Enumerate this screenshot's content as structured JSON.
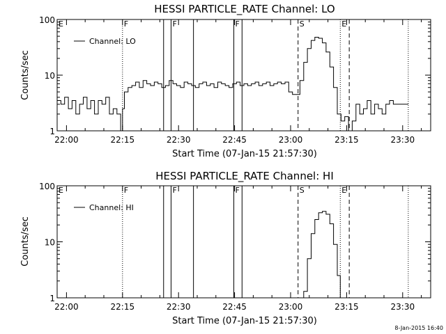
{
  "chart_data": [
    {
      "type": "line",
      "title": "HESSI PARTICLE_RATE Channel: LO",
      "xlabel": "Start Time (07-Jan-15 21:57:30)",
      "ylabel": "Counts/sec",
      "yscale": "log",
      "ylim": [
        1,
        100
      ],
      "xlim_minutes": [
        0,
        100
      ],
      "x_tick_labels": [
        "22:00",
        "22:15",
        "22:30",
        "22:45",
        "23:00",
        "23:15",
        "23:30"
      ],
      "y_tick_labels": [
        "1",
        "10",
        "100"
      ],
      "legend": "Channel: LO",
      "events": [
        {
          "label": "E",
          "t": 0,
          "style": "dotted"
        },
        {
          "label": "F",
          "t": 17.5,
          "style": "dotted"
        },
        {
          "label": "",
          "t": 28.5,
          "style": "solid"
        },
        {
          "label": "F",
          "t": 30.5,
          "style": "solid"
        },
        {
          "label": "",
          "t": 36.5,
          "style": "solid"
        },
        {
          "label": "F",
          "t": 47.3,
          "style": "solid"
        },
        {
          "label": "",
          "t": 49.5,
          "style": "solid"
        },
        {
          "label": "S",
          "t": 64.5,
          "style": "dashed"
        },
        {
          "label": "E",
          "t": 75.8,
          "style": "dotted"
        },
        {
          "label": "",
          "t": 78.2,
          "style": "dashed"
        },
        {
          "label": "",
          "t": 94.0,
          "style": "dotted"
        }
      ],
      "series": [
        {
          "name": "Channel: LO",
          "x": [
            0,
            1,
            2,
            3,
            4,
            5,
            6,
            7,
            8,
            9,
            10,
            11,
            12,
            13,
            14,
            15,
            16,
            17,
            17.5,
            18,
            19,
            20,
            21,
            22,
            23,
            24,
            25,
            26,
            27,
            28,
            29,
            30,
            31,
            32,
            33,
            34,
            35,
            36,
            37,
            38,
            39,
            40,
            41,
            42,
            43,
            44,
            45,
            46,
            47,
            48,
            49,
            50,
            51,
            52,
            53,
            54,
            55,
            56,
            57,
            58,
            59,
            60,
            61,
            62,
            63,
            64,
            65,
            66,
            67,
            68,
            69,
            70,
            71,
            72,
            73,
            74,
            75,
            76,
            77,
            78,
            79,
            80,
            81,
            82,
            83,
            84,
            85,
            86,
            87,
            88,
            89,
            90,
            91,
            92,
            93,
            94
          ],
          "values": [
            3.5,
            3.0,
            4.0,
            2.5,
            3.5,
            2.0,
            3.0,
            4.0,
            2.5,
            3.5,
            2.0,
            3.5,
            3.0,
            4.0,
            2.0,
            2.5,
            2.0,
            1.0,
            2.5,
            5.0,
            6.0,
            6.5,
            7.5,
            6.0,
            8.0,
            7.0,
            6.5,
            7.5,
            7.0,
            6.0,
            6.5,
            8.0,
            7.0,
            6.5,
            6.0,
            7.5,
            7.0,
            6.5,
            6.0,
            7.0,
            7.5,
            6.5,
            7.0,
            6.0,
            7.5,
            7.0,
            6.5,
            6.0,
            7.0,
            7.5,
            6.5,
            7.0,
            6.5,
            7.0,
            7.5,
            6.5,
            7.0,
            7.5,
            6.5,
            7.0,
            7.5,
            7.0,
            7.5,
            5.0,
            4.5,
            4.5,
            8.0,
            17.0,
            30.0,
            42.0,
            48.0,
            46.0,
            38.0,
            26.0,
            14.0,
            6.0,
            2.0,
            1.5,
            1.8,
            1.0,
            1.5,
            3.0,
            2.0,
            2.5,
            3.5,
            2.0,
            3.0,
            2.5,
            2.0,
            3.0,
            3.5,
            3.0,
            3.0,
            3.0,
            3.0,
            3.0
          ]
        }
      ]
    },
    {
      "type": "line",
      "title": "HESSI PARTICLE_RATE Channel: HI",
      "xlabel": "Start Time (07-Jan-15 21:57:30)",
      "ylabel": "Counts/sec",
      "yscale": "log",
      "ylim": [
        1,
        100
      ],
      "xlim_minutes": [
        0,
        100
      ],
      "x_tick_labels": [
        "22:00",
        "22:15",
        "22:30",
        "22:45",
        "23:00",
        "23:15",
        "23:30"
      ],
      "y_tick_labels": [
        "1",
        "10",
        "100"
      ],
      "legend": "Channel: HI",
      "events": [
        {
          "label": "E",
          "t": 0,
          "style": "dotted"
        },
        {
          "label": "F",
          "t": 17.5,
          "style": "dotted"
        },
        {
          "label": "",
          "t": 28.5,
          "style": "solid"
        },
        {
          "label": "F",
          "t": 30.5,
          "style": "solid"
        },
        {
          "label": "",
          "t": 36.5,
          "style": "solid"
        },
        {
          "label": "F",
          "t": 47.3,
          "style": "solid"
        },
        {
          "label": "",
          "t": 49.5,
          "style": "solid"
        },
        {
          "label": "S",
          "t": 64.5,
          "style": "dashed"
        },
        {
          "label": "E",
          "t": 75.8,
          "style": "dotted"
        },
        {
          "label": "",
          "t": 78.2,
          "style": "dashed"
        },
        {
          "label": "",
          "t": 94.0,
          "style": "dotted"
        }
      ],
      "series": [
        {
          "name": "Channel: HI",
          "x": [
            65.5,
            66,
            67,
            68,
            69,
            70,
            71,
            72,
            73,
            74,
            75,
            75.8
          ],
          "values": [
            1.0,
            1.3,
            5.0,
            14.0,
            25.0,
            33.0,
            35.0,
            31.0,
            21.0,
            9.0,
            2.5,
            1.0
          ]
        }
      ]
    }
  ],
  "footer": {
    "timestamp": "8-Jan-2015 16:40"
  }
}
